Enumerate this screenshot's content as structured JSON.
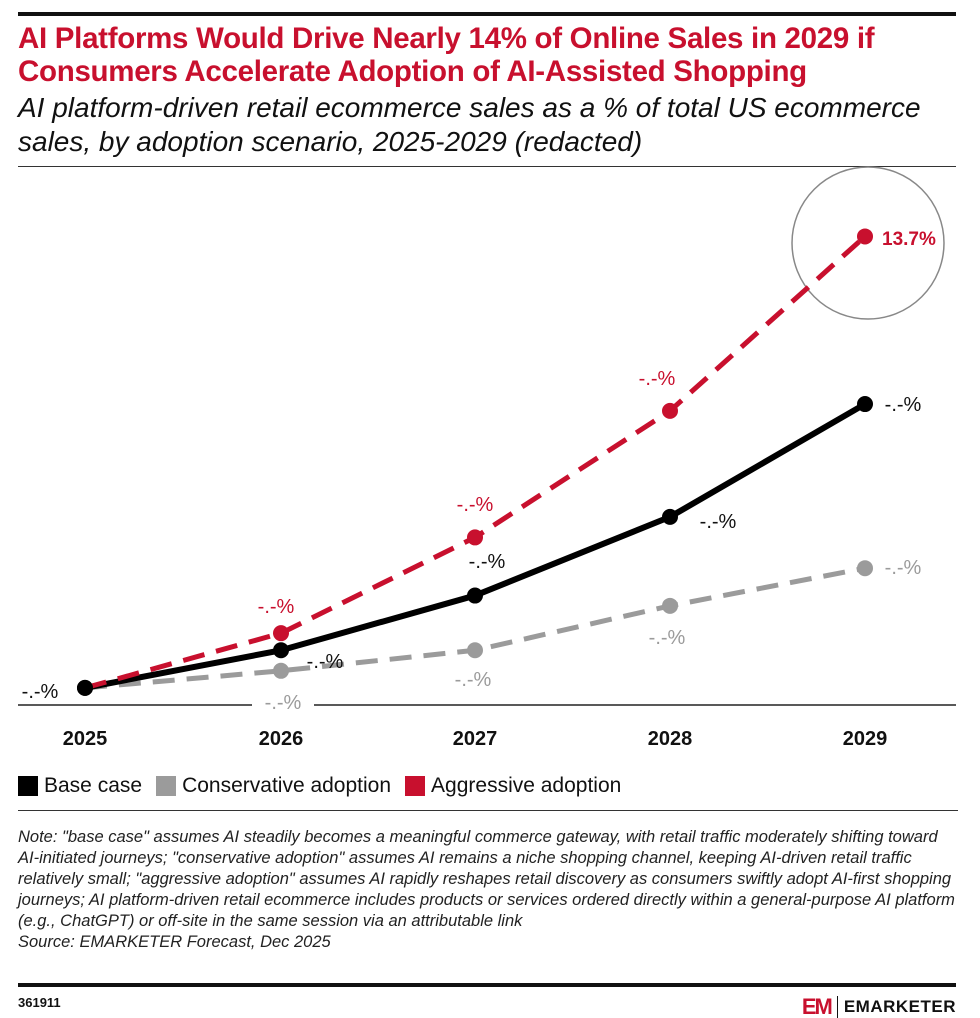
{
  "header": {
    "title": "AI Platforms Would Drive Nearly 14% of Online Sales in 2029 if Consumers Accelerate Adoption of AI-Assisted Shopping",
    "subtitle": "AI platform-driven retail ecommerce sales as a % of total US ecommerce sales, by adoption scenario, 2025-2029 (redacted)"
  },
  "chart_data": {
    "type": "line",
    "categories": [
      "2025",
      "2026",
      "2027",
      "2028",
      "2029"
    ],
    "grid": false,
    "legend_position": "bottom-left",
    "series": [
      {
        "name": "Base case",
        "color": "#000000",
        "dash": false,
        "values": [
          0.5,
          1.6,
          3.2,
          5.5,
          8.8
        ],
        "labels": [
          "-.-%",
          "-.-%",
          "-.-%",
          "-.-%",
          "-.-%"
        ]
      },
      {
        "name": "Conservative adoption",
        "color": "#9b9b9b",
        "dash": true,
        "values": [
          0.5,
          1.0,
          1.6,
          2.9,
          4.0
        ],
        "labels": [
          "",
          "-.-%",
          "-.-%",
          "-.-%",
          "-.-%"
        ]
      },
      {
        "name": "Aggressive adoption",
        "color": "#c8102e",
        "dash": true,
        "values": [
          0.5,
          2.1,
          4.9,
          8.6,
          13.7
        ],
        "labels": [
          "",
          "-.-%",
          "-.-%",
          "-.-%",
          "13.7%"
        ]
      }
    ],
    "highlight": "13.7%"
  },
  "note": "Note: \"base case\" assumes AI steadily becomes a meaningful commerce gateway, with retail traffic moderately shifting toward AI-initiated journeys; \"conservative adoption\" assumes AI remains a niche shopping channel, keeping AI-driven retail traffic relatively small; \"aggressive adoption\" assumes AI rapidly reshapes retail discovery as consumers swiftly adopt AI-first shopping journeys; AI platform-driven retail ecommerce includes products or services ordered directly within a general-purpose AI platform (e.g., ChatGPT) or off-site in the same session via an attributable link",
  "source": "Source: EMARKETER Forecast, Dec 2025",
  "footer": {
    "chart_id": "361911",
    "logo_mark": "EM",
    "brand": "EMARKETER"
  }
}
